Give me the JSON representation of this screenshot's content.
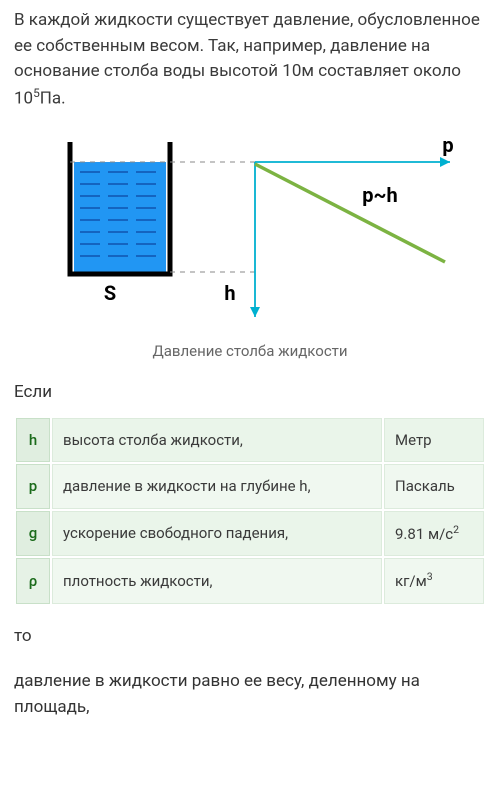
{
  "intro": {
    "text_pre": "В каждой жидкости существует давление, обусловленное ее собственным весом. Так, например, давление на основание столба воды высотой 10м составляет около 10",
    "sup": "5",
    "text_post": "Па."
  },
  "diagram": {
    "caption": "Давление столба жидкости",
    "labels": {
      "S": "S",
      "h": "h",
      "p": "p",
      "relation": "p~h"
    },
    "colors": {
      "water_fill": "#2196f3",
      "water_dash": "#0d47a1",
      "vessel_stroke": "#000000",
      "axis_color": "#00b0d0",
      "line_color": "#7cb342",
      "dash_color": "#888888",
      "label_color": "#000000"
    }
  },
  "if_label": "Если",
  "table": {
    "rows": [
      {
        "sym": "h",
        "desc": "высота столба жидкости,",
        "unit_pre": "Метр",
        "unit_sup": "",
        "unit_post": ""
      },
      {
        "sym": "p",
        "desc": "давление в жидкости на глубине h,",
        "unit_pre": "Паскаль",
        "unit_sup": "",
        "unit_post": ""
      },
      {
        "sym": "g",
        "desc": "ускорение свободного падения,",
        "unit_pre": "9.81 м/с",
        "unit_sup": "2",
        "unit_post": ""
      },
      {
        "sym": "ρ",
        "desc": "плотность жидкости,",
        "unit_pre": "кг/м",
        "unit_sup": "3",
        "unit_post": ""
      }
    ],
    "colors": {
      "sym_bg": "#e6f2e6",
      "sym_color": "#1b6b1b",
      "cell_bg": "#f0f8f0",
      "cell_color": "#3a3a3a",
      "border": "#c8e0c8"
    }
  },
  "then_label": "то",
  "conclusion": "давление в жидкости равно ее весу, деленному на площадь,"
}
